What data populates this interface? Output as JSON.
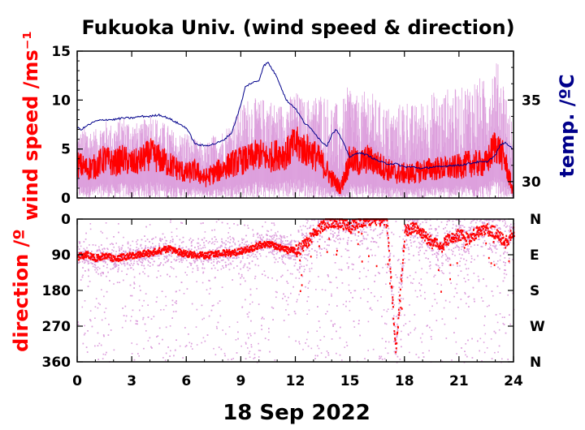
{
  "chart_data": [
    {
      "type": "line",
      "title": "Fukuoka Univ. (wind speed & direction)",
      "ylabel": "wind speed /ms⁻¹",
      "y2label": "temp. /ºC",
      "xlim": [
        0,
        24
      ],
      "ylim": [
        0,
        15
      ],
      "y2lim": [
        29,
        38
      ],
      "xticks": [
        "0",
        "3",
        "6",
        "9",
        "12",
        "15",
        "18",
        "21",
        "24"
      ],
      "yticks": [
        "0",
        "5",
        "10",
        "15"
      ],
      "y2ticks": [
        "30",
        "35"
      ],
      "series": [
        {
          "role": "gust",
          "color": "#dda0dd",
          "x": [
            0,
            0.5,
            1,
            1.5,
            2,
            2.5,
            3,
            3.5,
            4,
            4.5,
            5,
            5.5,
            6,
            6.5,
            7,
            7.5,
            8,
            8.5,
            9,
            9.5,
            10,
            10.5,
            11,
            11.5,
            12,
            12.5,
            13,
            13.5,
            14,
            14.5,
            15,
            15.5,
            16,
            16.5,
            17,
            17.5,
            18,
            18.5,
            19,
            19.5,
            20,
            20.5,
            21,
            21.5,
            22,
            22.5,
            23,
            23.5,
            24
          ],
          "values": [
            6.5,
            7.5,
            7,
            8,
            7.5,
            8.5,
            8,
            7.5,
            9,
            8,
            7.5,
            6.5,
            7,
            6,
            5.5,
            6.5,
            7,
            8,
            9.5,
            10.5,
            10,
            10.5,
            9.5,
            10,
            11,
            10,
            10.5,
            11,
            10,
            9.5,
            12,
            10,
            11.5,
            10,
            9.5,
            9,
            10.5,
            9.5,
            10,
            11,
            10.5,
            11.5,
            11,
            12,
            12.5,
            12,
            14.5,
            12,
            7
          ]
        },
        {
          "role": "mean",
          "color": "#ff0000",
          "x": [
            0,
            0.5,
            1,
            1.5,
            2,
            2.5,
            3,
            3.5,
            4,
            4.5,
            5,
            5.5,
            6,
            6.5,
            7,
            7.5,
            8,
            8.5,
            9,
            9.5,
            10,
            10.5,
            11,
            11.5,
            12,
            12.5,
            13,
            13.5,
            14,
            14.5,
            15,
            15.5,
            16,
            16.5,
            17,
            17.5,
            18,
            18.5,
            19,
            19.5,
            20,
            20.5,
            21,
            21.5,
            22,
            22.5,
            23,
            23.5,
            24
          ],
          "values": [
            3.5,
            3,
            3.2,
            4,
            3.5,
            4,
            3.5,
            3.8,
            4.5,
            4,
            3.5,
            3,
            2.5,
            2.8,
            2,
            2.5,
            3,
            3.5,
            3.8,
            4,
            4.5,
            4,
            4.5,
            4.5,
            5.5,
            5,
            4.5,
            3.5,
            2,
            1,
            4,
            3.5,
            4,
            3.5,
            3,
            2.5,
            2.5,
            2.5,
            2.8,
            3,
            3,
            3,
            3.2,
            3.5,
            3.5,
            3.5,
            5.5,
            4,
            0.5
          ]
        },
        {
          "role": "temperature",
          "color": "#00008b",
          "x": [
            0,
            0.25,
            0.5,
            1,
            1.5,
            2,
            2.5,
            3,
            3.5,
            4,
            4.5,
            5,
            5.5,
            6,
            6.5,
            7,
            7.5,
            8,
            8.5,
            9,
            9.25,
            9.5,
            10,
            10.25,
            10.5,
            11,
            11.5,
            12,
            12.5,
            13,
            13.25,
            13.5,
            13.75,
            14,
            14.25,
            14.5,
            15,
            15.5,
            16,
            16.5,
            17,
            17.5,
            18,
            18.5,
            19,
            19.5,
            20,
            20.5,
            21,
            21.5,
            22,
            22.5,
            23,
            23.25,
            23.5,
            23.75,
            24
          ],
          "values": [
            33.3,
            33.2,
            33.4,
            33.7,
            33.8,
            33.8,
            33.9,
            33.9,
            34,
            34,
            34.1,
            33.9,
            33.6,
            33.3,
            32.3,
            32.2,
            32.3,
            32.5,
            33,
            34.7,
            35.8,
            36,
            36.2,
            37.1,
            37.3,
            36.4,
            35,
            34.5,
            33.6,
            33.1,
            32.7,
            32.4,
            32.2,
            32.9,
            33.2,
            32.7,
            31.5,
            31.8,
            31.6,
            31.3,
            31.1,
            31.1,
            30.9,
            30.9,
            30.8,
            30.9,
            30.9,
            31,
            31,
            31.1,
            31.2,
            31.2,
            31.6,
            32.2,
            32.4,
            32.2,
            32
          ]
        }
      ]
    },
    {
      "type": "scatter",
      "ylabel": "direction /º",
      "xlabel": "18 Sep 2022",
      "xlim": [
        0,
        24
      ],
      "ylim": [
        360,
        0
      ],
      "xticks": [
        "0",
        "3",
        "6",
        "9",
        "12",
        "15",
        "18",
        "21",
        "24"
      ],
      "yticks": [
        "0",
        "90",
        "180",
        "270",
        "360"
      ],
      "y2ticks": [
        "N",
        "E",
        "S",
        "W",
        "N"
      ],
      "series": [
        {
          "role": "instantaneous",
          "color": "#dda0dd"
        },
        {
          "role": "mean",
          "color": "#ff0000",
          "x": [
            0,
            0.5,
            1,
            1.5,
            2,
            2.5,
            3,
            3.5,
            4,
            4.5,
            5,
            5.5,
            6,
            6.5,
            7,
            7.5,
            8,
            8.5,
            9,
            9.5,
            10,
            10.5,
            11,
            11.5,
            12,
            12.5,
            13,
            13.5,
            14,
            14.5,
            15,
            15.5,
            16,
            16.5,
            17,
            17.5,
            18,
            18.5,
            19,
            19.5,
            20,
            20.5,
            21,
            21.5,
            22,
            22.5,
            23,
            23.5,
            24
          ],
          "values": [
            95,
            90,
            98,
            92,
            100,
            95,
            92,
            88,
            85,
            80,
            75,
            82,
            88,
            90,
            92,
            88,
            85,
            86,
            80,
            75,
            65,
            62,
            70,
            78,
            80,
            65,
            35,
            15,
            5,
            10,
            20,
            8,
            2,
            0,
            5,
            330,
            30,
            20,
            40,
            60,
            70,
            45,
            40,
            50,
            30,
            25,
            35,
            60,
            30
          ]
        }
      ]
    }
  ]
}
